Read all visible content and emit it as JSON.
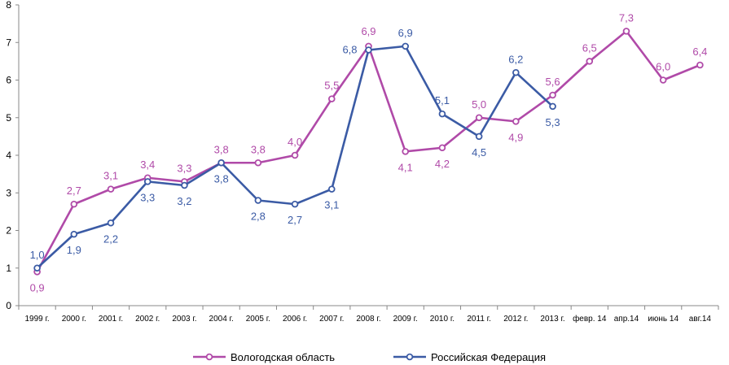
{
  "chart_data": {
    "type": "line",
    "categories": [
      "1999 г.",
      "2000 г.",
      "2001 г.",
      "2002 г.",
      "2003 г.",
      "2004 г.",
      "2005 г.",
      "2006 г.",
      "2007 г.",
      "2008 г.",
      "2009 г.",
      "2010 г.",
      "2011 г.",
      "2012 г.",
      "2013 г.",
      "февр. 14",
      "апр.14",
      "июнь 14",
      "авг.14"
    ],
    "series": [
      {
        "name": "Вологодская область",
        "color": "#b04aa8",
        "values": [
          0.9,
          2.7,
          3.1,
          3.4,
          3.3,
          3.8,
          3.8,
          4.0,
          5.5,
          6.9,
          4.1,
          4.2,
          5.0,
          4.9,
          5.6,
          6.5,
          7.3,
          6.0,
          6.4
        ],
        "labels": [
          "0,9",
          "2,7",
          "3,1",
          "3,4",
          "3,3",
          "3,8",
          "3,8",
          "4,0",
          "5,5",
          "6,9",
          "4,1",
          "4,2",
          "5,0",
          "4,9",
          "5,6",
          "6,5",
          "7,3",
          "6,0",
          "6,4"
        ]
      },
      {
        "name": "Российская Федерация",
        "color": "#3b5ba5",
        "values": [
          1.0,
          1.9,
          2.2,
          3.3,
          3.2,
          3.8,
          2.8,
          2.7,
          3.1,
          6.8,
          6.9,
          5.1,
          4.5,
          6.2,
          5.3,
          null,
          null,
          null,
          null
        ],
        "labels": [
          "1,0",
          "1,9",
          "2,2",
          "3,3",
          "3,2",
          "3,8",
          "2,8",
          "2,7",
          "3,1",
          "6,8",
          "6,9",
          "5,1",
          "4,5",
          "6,2",
          "5,3",
          null,
          null,
          null,
          null
        ]
      }
    ],
    "y_ticks": [
      "0",
      "1",
      "2",
      "3",
      "4",
      "5",
      "6",
      "7",
      "8"
    ],
    "ylim": [
      0,
      8
    ],
    "grid": false,
    "legend_position": "bottom"
  }
}
